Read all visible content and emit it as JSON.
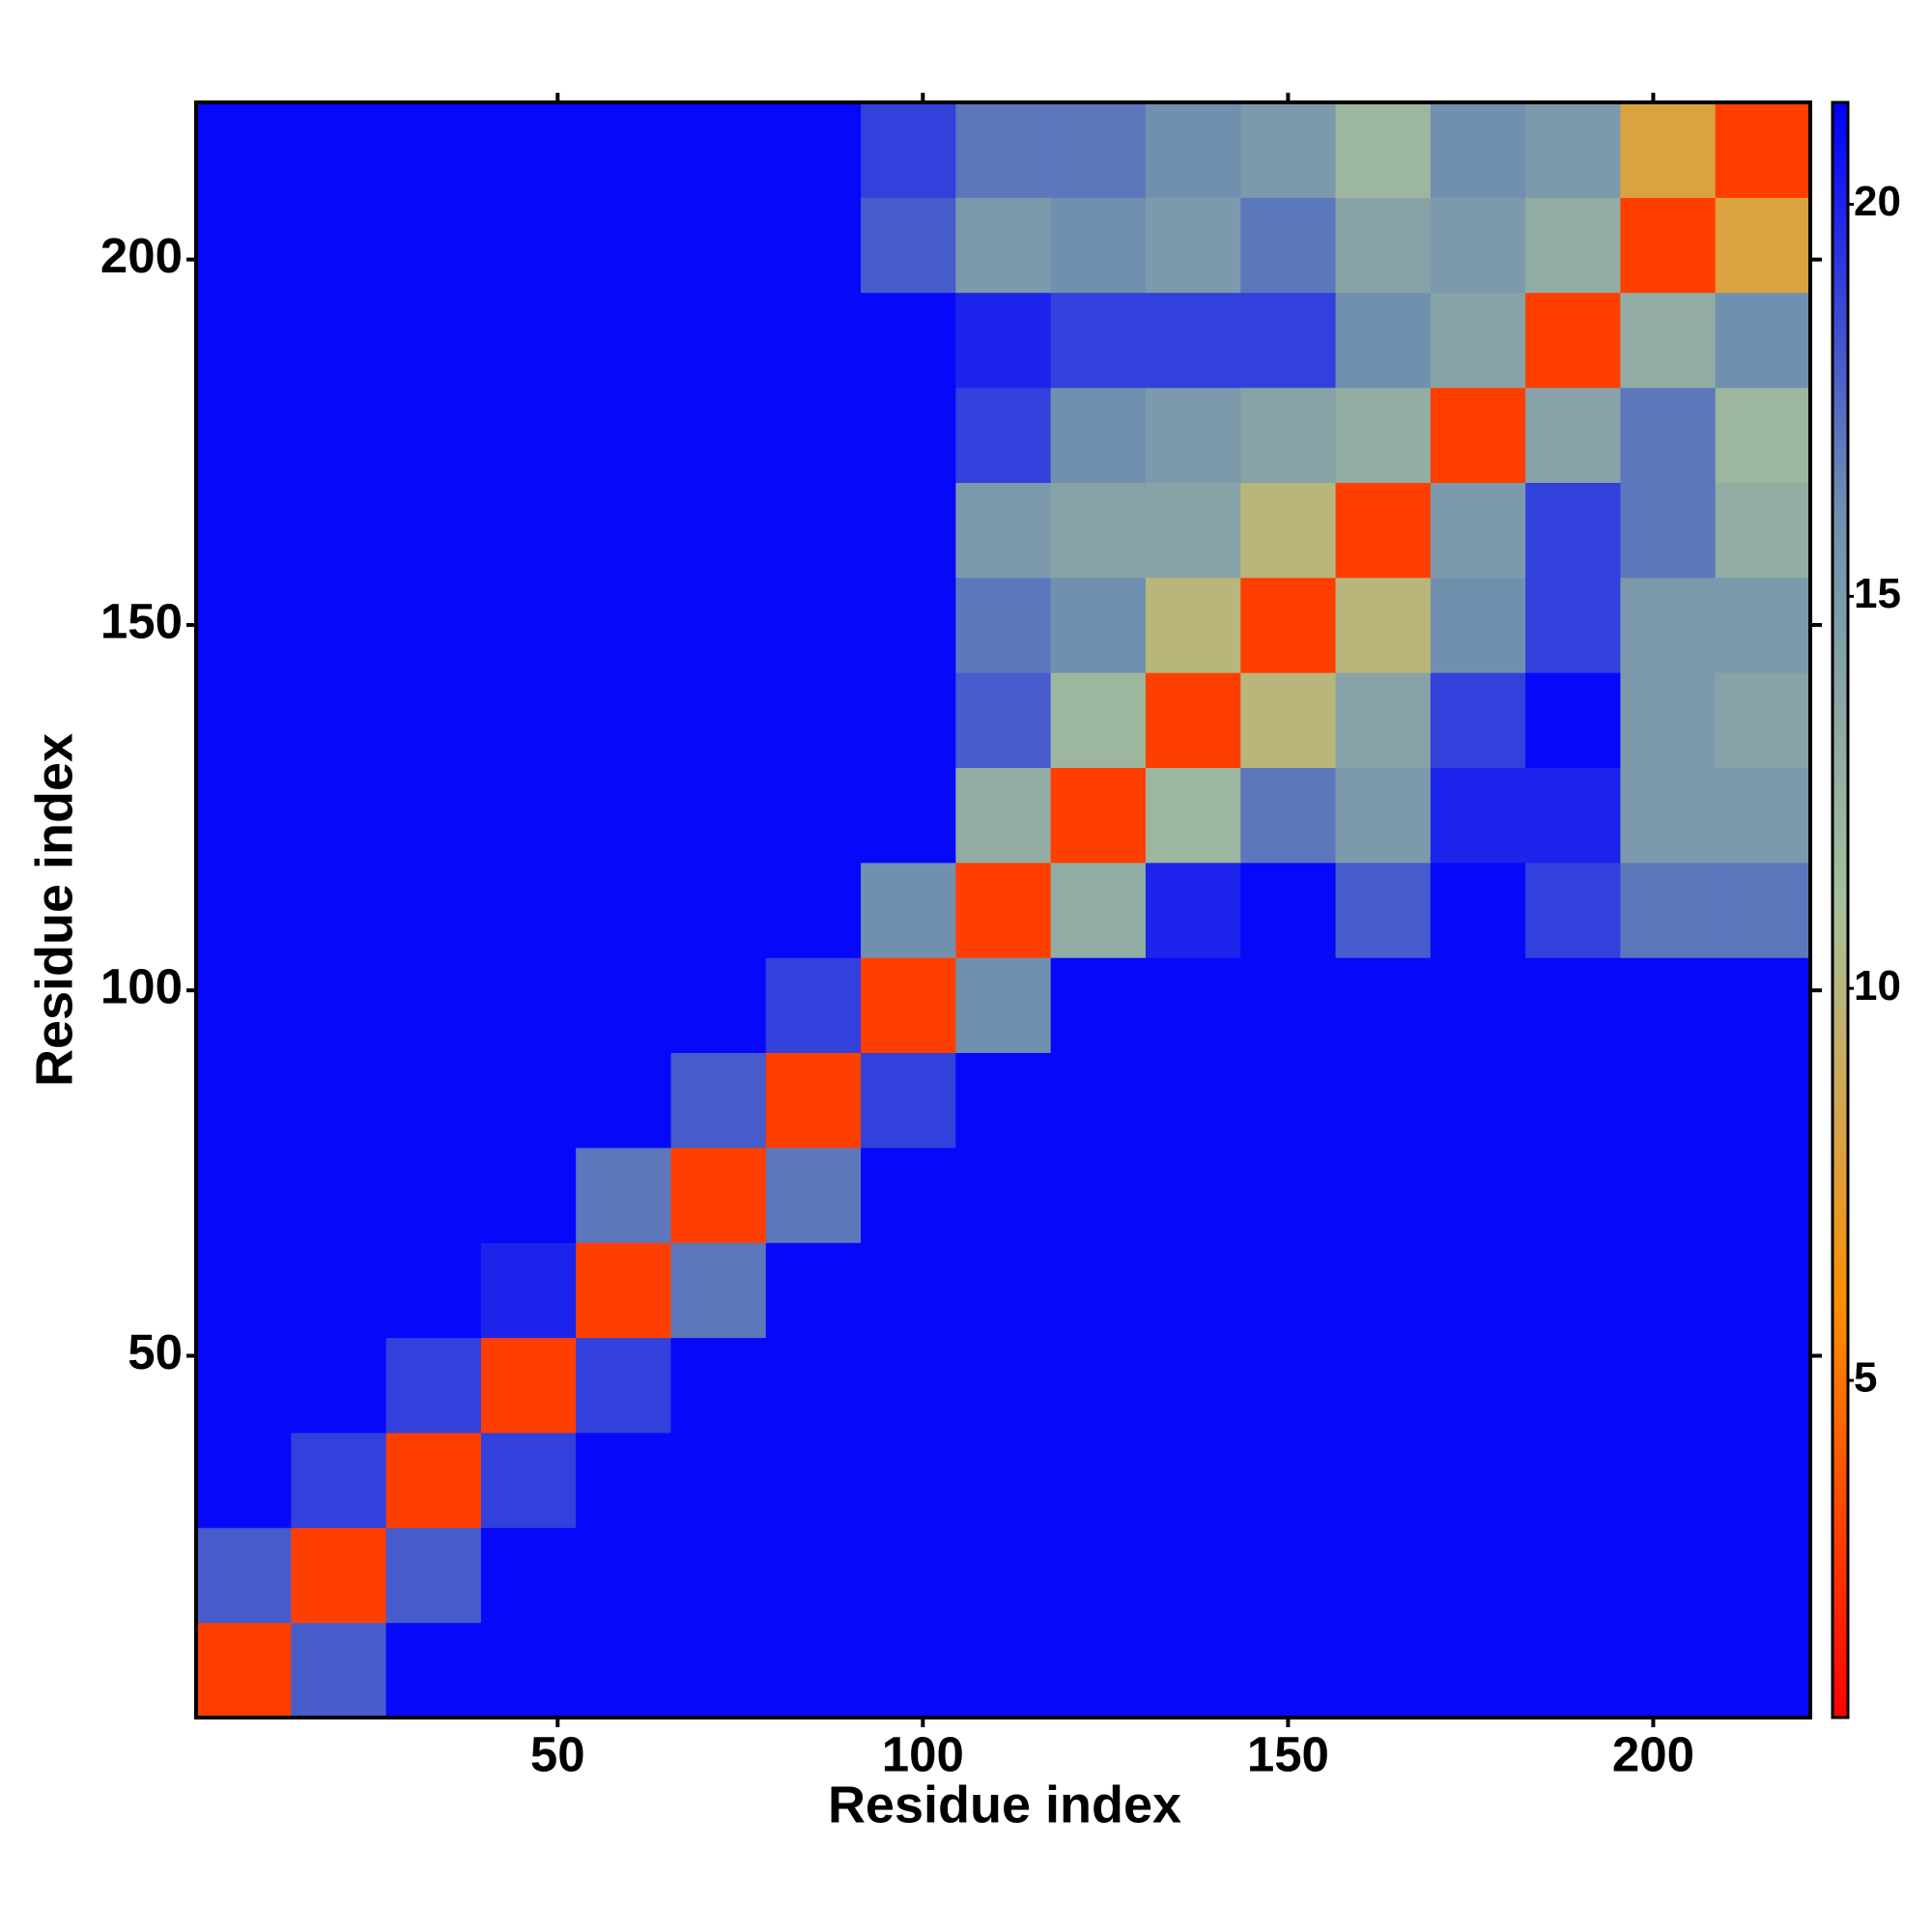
{
  "chart_data": {
    "type": "heatmap",
    "xlabel": "Residue index",
    "ylabel": "Residue index",
    "xbins": [
      0.5,
      13.5,
      26.5,
      39.5,
      52.5,
      65.5,
      78.5,
      91.5,
      104.5,
      117.5,
      130.5,
      143.5,
      156.5,
      169.5,
      182.5,
      195.5,
      208.5,
      221.5
    ],
    "ybins": [
      0.5,
      13.5,
      26.5,
      39.5,
      52.5,
      65.5,
      78.5,
      91.5,
      104.5,
      117.5,
      130.5,
      143.5,
      156.5,
      169.5,
      182.5,
      195.5,
      208.5,
      221.5
    ],
    "z": [
      [
        3,
        18,
        21,
        21,
        21,
        21,
        21,
        21,
        21,
        21,
        21,
        21,
        21,
        21,
        21,
        21,
        21
      ],
      [
        18,
        3,
        18,
        21,
        21,
        21,
        21,
        21,
        21,
        21,
        21,
        21,
        21,
        21,
        21,
        21,
        21
      ],
      [
        21,
        19,
        3,
        19,
        21,
        21,
        21,
        21,
        21,
        21,
        21,
        21,
        21,
        21,
        21,
        21,
        21
      ],
      [
        21,
        21,
        19,
        3,
        19,
        21,
        21,
        21,
        21,
        21,
        21,
        21,
        21,
        21,
        21,
        21,
        21
      ],
      [
        21,
        21,
        21,
        20,
        3,
        17,
        21,
        21,
        21,
        21,
        21,
        21,
        21,
        21,
        21,
        21,
        21
      ],
      [
        21,
        21,
        21,
        21,
        17,
        3,
        17,
        21,
        21,
        21,
        21,
        21,
        21,
        21,
        21,
        21,
        21
      ],
      [
        21,
        21,
        21,
        21,
        21,
        18,
        3,
        19,
        21,
        21,
        21,
        21,
        21,
        21,
        21,
        21,
        21
      ],
      [
        21,
        21,
        21,
        21,
        21,
        21,
        19,
        3,
        16,
        21,
        21,
        21,
        21,
        21,
        21,
        21,
        21
      ],
      [
        21,
        21,
        21,
        21,
        21,
        21,
        21,
        16,
        3,
        13,
        20,
        21,
        18,
        21,
        19,
        17,
        17
      ],
      [
        21,
        21,
        21,
        21,
        21,
        21,
        21,
        21,
        13,
        3,
        12,
        17,
        15,
        20,
        20,
        15,
        15
      ],
      [
        21,
        21,
        21,
        21,
        21,
        21,
        21,
        21,
        18,
        12,
        3,
        10,
        14,
        19,
        21,
        15,
        14
      ],
      [
        21,
        21,
        21,
        21,
        21,
        21,
        21,
        21,
        17,
        16,
        10,
        3,
        10,
        16,
        19,
        15,
        15
      ],
      [
        21,
        21,
        21,
        21,
        21,
        21,
        21,
        21,
        15,
        14,
        14,
        10,
        3,
        15,
        19,
        17,
        13
      ],
      [
        21,
        21,
        21,
        21,
        21,
        21,
        21,
        21,
        19,
        16,
        15,
        14,
        13,
        3,
        14,
        17,
        12
      ],
      [
        21,
        21,
        21,
        21,
        21,
        21,
        21,
        21,
        20,
        19,
        19,
        19,
        16,
        14,
        3,
        13,
        16
      ],
      [
        21,
        21,
        21,
        21,
        21,
        21,
        21,
        18,
        15,
        16,
        15,
        17,
        14,
        15,
        13,
        3,
        8
      ],
      [
        21,
        21,
        21,
        21,
        21,
        21,
        21,
        19,
        17,
        17,
        16,
        15,
        12,
        16,
        15,
        8,
        3
      ]
    ],
    "xlim": [
      0.5,
      221.5
    ],
    "ylim": [
      0.5,
      221.5
    ],
    "xticks": [
      50,
      100,
      150,
      200
    ],
    "yticks": [
      50,
      100,
      150,
      200
    ],
    "zlim": [
      0.7,
      21.3
    ],
    "zticks": [
      5,
      10,
      15,
      20
    ],
    "colormap": [
      "#ff0000",
      "#ff8c00",
      "#a8c09a",
      "#6f8fb0",
      "#0000ff"
    ]
  }
}
